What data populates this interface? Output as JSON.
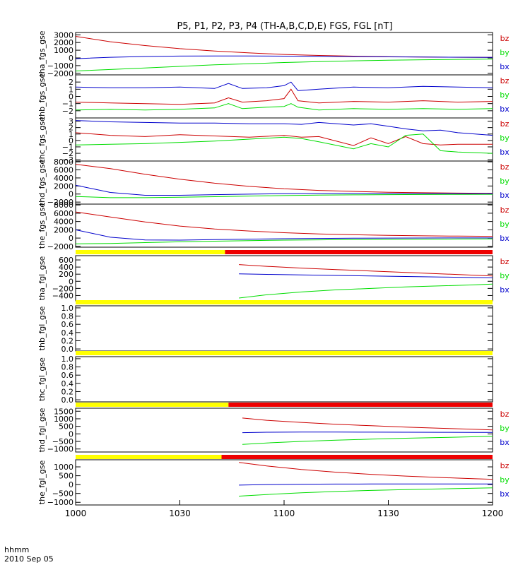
{
  "title": "P5, P1, P2, P3, P4 (TH-A,B,C,D,E) FGS, FGL [nT]",
  "x_axis": {
    "tick_labels": [
      "1000",
      "1030",
      "1100",
      "1130",
      "1200"
    ],
    "footer_line1": "hhmm",
    "footer_line2": "2010 Sep 05"
  },
  "colors": {
    "bz": "#cc0000",
    "by": "#00dd00",
    "bx": "#0000cc",
    "bar_yellow": "#ffff00",
    "bar_red": "#ee0000"
  },
  "chart_data": [
    {
      "type": "line",
      "ylabel": "tha_fgs_gse",
      "ylim": [
        -2200,
        3300
      ],
      "yticks": [
        3000,
        2000,
        1000,
        0,
        -1000,
        -2000
      ],
      "ytick_labels": [
        "3000",
        "2000",
        "1000",
        "0",
        "−1000",
        "−2000"
      ],
      "legend": [
        "bz",
        "by",
        "bx"
      ],
      "series": [
        {
          "name": "bz",
          "x": [
            0,
            10,
            20,
            30,
            40,
            50,
            60,
            70,
            80,
            90,
            100,
            110,
            120
          ],
          "y": [
            2800,
            2100,
            1600,
            1200,
            900,
            650,
            450,
            320,
            230,
            160,
            110,
            80,
            60
          ]
        },
        {
          "name": "by",
          "x": [
            0,
            10,
            20,
            30,
            40,
            50,
            60,
            70,
            80,
            90,
            100,
            110,
            120
          ],
          "y": [
            -1700,
            -1500,
            -1300,
            -1100,
            -900,
            -750,
            -600,
            -480,
            -380,
            -300,
            -240,
            -190,
            -150
          ]
        },
        {
          "name": "bx",
          "x": [
            0,
            10,
            20,
            30,
            40,
            50,
            60,
            70,
            80,
            90,
            100,
            110,
            120
          ],
          "y": [
            -100,
            80,
            180,
            240,
            260,
            250,
            230,
            200,
            170,
            140,
            110,
            90,
            70
          ]
        }
      ]
    },
    {
      "type": "line",
      "ylabel": "thb_fgs_gse",
      "ylim": [
        -3,
        3
      ],
      "yticks": [
        2,
        1,
        0,
        -1,
        -2
      ],
      "ytick_labels": [
        "2",
        "1",
        "0",
        "−1",
        "−2"
      ],
      "legend": [
        "bz",
        "by",
        "bx"
      ],
      "series": [
        {
          "name": "bz",
          "x": [
            0,
            10,
            20,
            30,
            40,
            44,
            48,
            55,
            60,
            62,
            64,
            70,
            80,
            90,
            100,
            110,
            120
          ],
          "y": [
            -0.8,
            -0.9,
            -1.0,
            -1.1,
            -0.9,
            -0.2,
            -0.8,
            -0.6,
            -0.3,
            1.0,
            -0.6,
            -0.9,
            -0.7,
            -0.8,
            -0.6,
            -0.8,
            -0.7
          ]
        },
        {
          "name": "by",
          "x": [
            0,
            10,
            20,
            30,
            40,
            44,
            48,
            55,
            60,
            62,
            64,
            70,
            80,
            90,
            100,
            110,
            120
          ],
          "y": [
            -1.9,
            -1.8,
            -1.9,
            -1.8,
            -1.6,
            -1.0,
            -1.7,
            -1.5,
            -1.4,
            -1.0,
            -1.5,
            -1.9,
            -1.7,
            -1.8,
            -1.7,
            -1.8,
            -1.7
          ]
        },
        {
          "name": "bx",
          "x": [
            0,
            10,
            20,
            30,
            40,
            44,
            48,
            55,
            60,
            62,
            64,
            70,
            80,
            90,
            100,
            110,
            120
          ],
          "y": [
            1.3,
            1.2,
            1.2,
            1.3,
            1.1,
            1.8,
            1.1,
            1.2,
            1.5,
            2.0,
            0.8,
            1.0,
            1.3,
            1.2,
            1.4,
            1.3,
            1.2
          ]
        }
      ]
    },
    {
      "type": "line",
      "ylabel": "thc_fgs_gse",
      "ylim": [
        -3.2,
        3.5
      ],
      "yticks": [
        3,
        2,
        1,
        0,
        -1,
        -2,
        -3
      ],
      "ytick_labels": [
        "3",
        "2",
        "1",
        "0",
        "−1",
        "−2",
        "−3"
      ],
      "legend": [
        "bz",
        "by",
        "bx"
      ],
      "series": [
        {
          "name": "bz",
          "x": [
            0,
            10,
            20,
            30,
            40,
            50,
            60,
            65,
            70,
            80,
            85,
            90,
            95,
            100,
            105,
            110,
            120
          ],
          "y": [
            1.2,
            0.8,
            0.6,
            0.9,
            0.7,
            0.5,
            0.8,
            0.5,
            0.6,
            -0.8,
            0.4,
            -0.5,
            0.6,
            -0.5,
            -0.7,
            -0.6,
            -0.6
          ]
        },
        {
          "name": "by",
          "x": [
            0,
            10,
            20,
            30,
            40,
            50,
            60,
            65,
            70,
            80,
            85,
            90,
            95,
            100,
            105,
            110,
            120
          ],
          "y": [
            -0.7,
            -0.6,
            -0.5,
            -0.3,
            -0.1,
            0.2,
            0.5,
            0.3,
            -0.2,
            -1.3,
            -0.5,
            -1.0,
            0.8,
            1.0,
            -1.6,
            -1.8,
            -2.0
          ]
        },
        {
          "name": "bx",
          "x": [
            0,
            10,
            20,
            30,
            40,
            50,
            60,
            65,
            70,
            80,
            85,
            90,
            95,
            100,
            105,
            110,
            120
          ],
          "y": [
            3.1,
            2.9,
            2.8,
            2.7,
            2.7,
            2.6,
            2.6,
            2.5,
            2.8,
            2.4,
            2.6,
            2.2,
            1.8,
            1.5,
            1.6,
            1.2,
            0.8
          ]
        }
      ]
    },
    {
      "type": "line",
      "ylabel": "thd_fgs_gse",
      "ylim": [
        -2500,
        8200
      ],
      "yticks": [
        8000,
        6000,
        4000,
        2000,
        0,
        -2000
      ],
      "ytick_labels": [
        "8000",
        "6000",
        "4000",
        "2000",
        "0",
        "−2000"
      ],
      "legend": [
        "bz",
        "by",
        "bx"
      ],
      "series": [
        {
          "name": "bz",
          "x": [
            0,
            10,
            20,
            30,
            40,
            50,
            60,
            70,
            80,
            90,
            100,
            110,
            120
          ],
          "y": [
            7400,
            6300,
            4900,
            3700,
            2700,
            1900,
            1300,
            900,
            650,
            450,
            330,
            240,
            180
          ]
        },
        {
          "name": "by",
          "x": [
            0,
            10,
            20,
            30,
            40,
            50,
            60,
            70,
            80,
            90,
            100,
            110,
            120
          ],
          "y": [
            -600,
            -900,
            -900,
            -800,
            -650,
            -500,
            -380,
            -280,
            -200,
            -150,
            -110,
            -80,
            -60
          ]
        },
        {
          "name": "bx",
          "x": [
            0,
            10,
            20,
            30,
            40,
            50,
            60,
            70,
            80,
            90,
            100,
            110,
            120
          ],
          "y": [
            2200,
            400,
            -300,
            -300,
            -150,
            -20,
            80,
            120,
            130,
            120,
            110,
            100,
            90
          ]
        }
      ]
    },
    {
      "type": "line",
      "ylabel": "the_fgs_gse",
      "ylim": [
        -2200,
        8200
      ],
      "yticks": [
        8000,
        6000,
        4000,
        2000,
        0,
        -2000
      ],
      "ytick_labels": [
        "8000",
        "6000",
        "4000",
        "2000",
        "0",
        "−2000"
      ],
      "legend": [
        "bz",
        "by",
        "bx"
      ],
      "series": [
        {
          "name": "bz",
          "x": [
            0,
            10,
            20,
            30,
            40,
            50,
            60,
            70,
            80,
            90,
            100,
            110,
            120
          ],
          "y": [
            6300,
            5100,
            3900,
            2900,
            2200,
            1700,
            1300,
            1000,
            800,
            650,
            550,
            480,
            420
          ]
        },
        {
          "name": "by",
          "x": [
            0,
            10,
            20,
            30,
            40,
            50,
            60,
            70,
            80,
            90,
            100,
            110,
            120
          ],
          "y": [
            -1400,
            -1300,
            -1100,
            -900,
            -750,
            -620,
            -500,
            -420,
            -350,
            -300,
            -260,
            -230,
            -200
          ]
        },
        {
          "name": "bx",
          "x": [
            0,
            10,
            20,
            30,
            40,
            50,
            60,
            70,
            80,
            90,
            100,
            110,
            120
          ],
          "y": [
            2000,
            200,
            -450,
            -500,
            -380,
            -250,
            -150,
            -80,
            -30,
            0,
            20,
            30,
            40
          ]
        }
      ]
    },
    {
      "type": "line",
      "ylabel": "tha_fgl_gse",
      "ylim": [
        -550,
        720
      ],
      "yticks": [
        600,
        400,
        200,
        0,
        -200,
        -400
      ],
      "ytick_labels": [
        "600",
        "400",
        "200",
        "0",
        "−200",
        "−400"
      ],
      "legend": [
        "bz",
        "by",
        "bx"
      ],
      "series": [
        {
          "name": "bz",
          "x": [
            47,
            55,
            65,
            75,
            85,
            95,
            105,
            115,
            120
          ],
          "y": [
            470,
            420,
            370,
            330,
            290,
            250,
            210,
            170,
            150
          ]
        },
        {
          "name": "by",
          "x": [
            47,
            55,
            65,
            75,
            85,
            95,
            105,
            115,
            120
          ],
          "y": [
            -470,
            -380,
            -300,
            -240,
            -200,
            -160,
            -130,
            -100,
            -80
          ]
        },
        {
          "name": "bx",
          "x": [
            47,
            55,
            65,
            75,
            85,
            95,
            105,
            115,
            120
          ],
          "y": [
            210,
            195,
            180,
            165,
            150,
            135,
            120,
            105,
            100
          ]
        }
      ]
    },
    {
      "type": "line",
      "ylabel": "thb_fgl_gse",
      "ylim": [
        -0.05,
        1.05
      ],
      "yticks": [
        1.0,
        0.8,
        0.6,
        0.4,
        0.2,
        0.0
      ],
      "ytick_labels": [
        "1.0",
        "0.8",
        "0.6",
        "0.4",
        "0.2",
        "0.0"
      ],
      "series": []
    },
    {
      "type": "line",
      "ylabel": "thc_fgl_gse",
      "ylim": [
        -0.05,
        1.05
      ],
      "yticks": [
        1.0,
        0.8,
        0.6,
        0.4,
        0.2,
        0.0
      ],
      "ytick_labels": [
        "1.0",
        "0.8",
        "0.6",
        "0.4",
        "0.2",
        "0.0"
      ],
      "series": []
    },
    {
      "type": "line",
      "ylabel": "thd_fgl_gse",
      "ylim": [
        -1200,
        1700
      ],
      "yticks": [
        1500,
        1000,
        500,
        0,
        -500,
        -1000
      ],
      "ytick_labels": [
        "1500",
        "1000",
        "500",
        "0",
        "−500",
        "−1000"
      ],
      "legend": [
        "bz",
        "by",
        "bx"
      ],
      "series": [
        {
          "name": "bz",
          "x": [
            48,
            55,
            65,
            75,
            85,
            95,
            105,
            115,
            120
          ],
          "y": [
            1050,
            900,
            760,
            640,
            540,
            450,
            370,
            300,
            260
          ]
        },
        {
          "name": "by",
          "x": [
            48,
            55,
            65,
            75,
            85,
            95,
            105,
            115,
            120
          ],
          "y": [
            -700,
            -600,
            -500,
            -420,
            -350,
            -290,
            -240,
            -190,
            -160
          ]
        },
        {
          "name": "bx",
          "x": [
            48,
            55,
            65,
            75,
            85,
            95,
            105,
            115,
            120
          ],
          "y": [
            80,
            110,
            120,
            120,
            115,
            110,
            105,
            100,
            95
          ]
        }
      ]
    },
    {
      "type": "line",
      "ylabel": "the_fgl_gse",
      "ylim": [
        -1150,
        1400
      ],
      "yticks": [
        1000,
        500,
        0,
        -500,
        -1000
      ],
      "ytick_labels": [
        "1000",
        "500",
        "0",
        "−500",
        "−1000"
      ],
      "legend": [
        "bz",
        "by",
        "bx"
      ],
      "series": [
        {
          "name": "bz",
          "x": [
            47,
            55,
            65,
            75,
            85,
            95,
            105,
            115,
            120
          ],
          "y": [
            1250,
            1050,
            850,
            700,
            580,
            480,
            400,
            330,
            300
          ]
        },
        {
          "name": "by",
          "x": [
            47,
            55,
            65,
            75,
            85,
            95,
            105,
            115,
            120
          ],
          "y": [
            -650,
            -560,
            -460,
            -390,
            -330,
            -280,
            -240,
            -200,
            -180
          ]
        },
        {
          "name": "bx",
          "x": [
            47,
            55,
            65,
            75,
            85,
            95,
            105,
            115,
            120
          ],
          "y": [
            -30,
            0,
            20,
            30,
            35,
            35,
            35,
            35,
            35
          ]
        }
      ]
    }
  ],
  "bars": [
    {
      "segments": [
        {
          "color": "yellow",
          "from": 0,
          "to": 43
        },
        {
          "color": "red",
          "from": 43,
          "to": 120
        }
      ]
    },
    {
      "segments": [
        {
          "color": "yellow",
          "from": 0,
          "to": 120
        }
      ]
    },
    {
      "segments": [
        {
          "color": "yellow",
          "from": 0,
          "to": 120
        }
      ]
    },
    {
      "segments": [
        {
          "color": "yellow",
          "from": 0,
          "to": 44
        },
        {
          "color": "red",
          "from": 44,
          "to": 120
        }
      ]
    },
    {
      "segments": [
        {
          "color": "yellow",
          "from": 0,
          "to": 42
        },
        {
          "color": "red",
          "from": 42,
          "to": 120
        }
      ]
    }
  ]
}
